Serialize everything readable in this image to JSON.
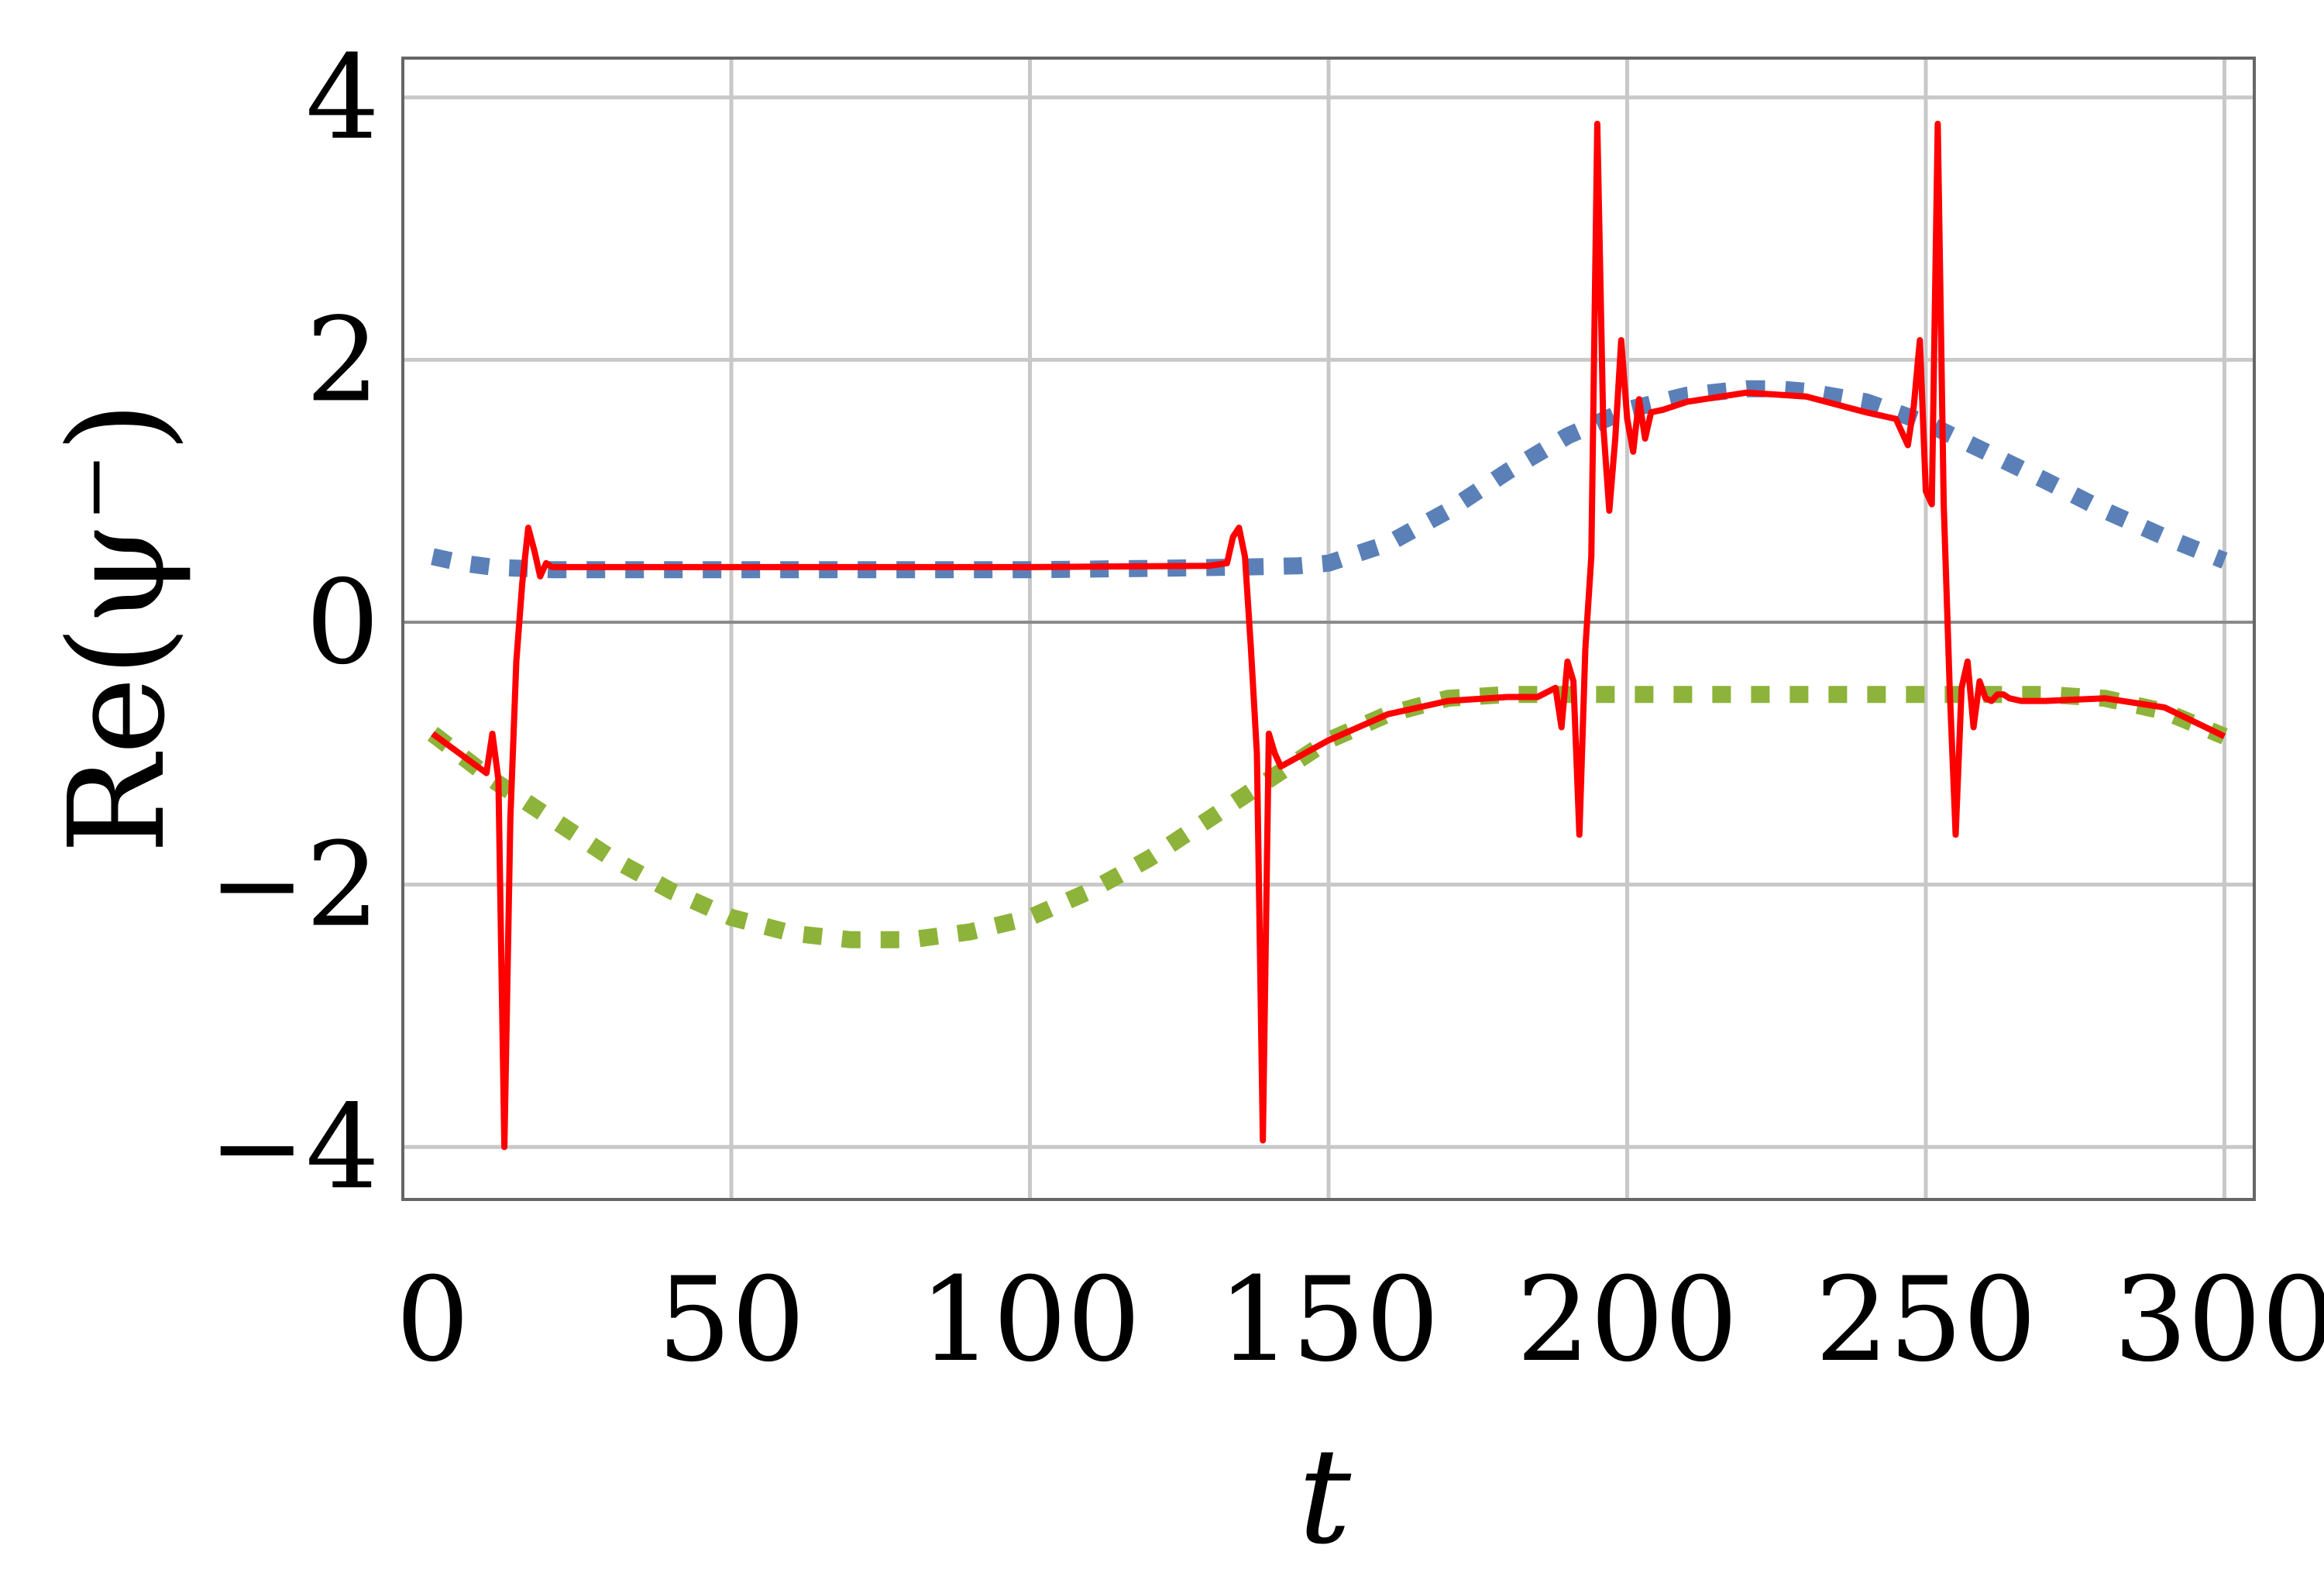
{
  "chart_data": {
    "type": "line",
    "title": "",
    "xlabel": "t",
    "ylabel": "Re(ψ⁻)",
    "xlim": [
      -5,
      305
    ],
    "ylim": [
      -4.4,
      4.3
    ],
    "xticks": [
      0,
      50,
      100,
      150,
      200,
      250,
      300
    ],
    "yticks": [
      -4,
      -2,
      0,
      2,
      4
    ],
    "xtick_labels": [
      "0",
      "50",
      "100",
      "150",
      "200",
      "250",
      "300"
    ],
    "ytick_labels": [
      "−4",
      "−2",
      "0",
      "2",
      "4"
    ],
    "grid": true,
    "legend": "none",
    "series": [
      {
        "style": "dotted",
        "color": "#5b80b8",
        "x": [
          0,
          5,
          10,
          20,
          40,
          60,
          80,
          100,
          120,
          135,
          145,
          150,
          160,
          170,
          180,
          190,
          200,
          210,
          220,
          225,
          230,
          240,
          250,
          260,
          270,
          280,
          290,
          300
        ],
        "y": [
          0.5,
          0.45,
          0.42,
          0.4,
          0.4,
          0.4,
          0.4,
          0.4,
          0.41,
          0.42,
          0.43,
          0.45,
          0.6,
          0.85,
          1.15,
          1.42,
          1.62,
          1.73,
          1.78,
          1.78,
          1.76,
          1.68,
          1.52,
          1.3,
          1.08,
          0.85,
          0.65,
          0.47
        ]
      },
      {
        "style": "dotted",
        "color": "#8db33a",
        "x": [
          0,
          10,
          20,
          30,
          40,
          50,
          60,
          70,
          80,
          90,
          100,
          110,
          120,
          130,
          140,
          150,
          160,
          170,
          180,
          190,
          200,
          250,
          270,
          280,
          290,
          300
        ],
        "y": [
          -0.85,
          -1.2,
          -1.5,
          -1.8,
          -2.05,
          -2.25,
          -2.37,
          -2.42,
          -2.42,
          -2.36,
          -2.25,
          -2.05,
          -1.8,
          -1.5,
          -1.2,
          -0.9,
          -0.7,
          -0.58,
          -0.55,
          -0.55,
          -0.55,
          -0.55,
          -0.55,
          -0.58,
          -0.68,
          -0.87
        ]
      },
      {
        "style": "solid",
        "color": "#ff0000",
        "x": [
          0,
          6,
          9,
          10,
          11,
          12,
          13,
          14,
          15,
          16,
          17,
          18,
          19,
          20,
          30,
          60,
          100,
          130,
          133,
          134,
          135,
          136,
          137,
          138,
          139,
          140,
          141,
          142,
          150,
          160,
          170,
          180,
          185,
          188,
          189,
          190,
          191,
          192,
          193,
          194,
          195,
          196,
          197,
          198,
          199,
          200,
          201,
          202,
          203,
          204,
          206,
          210,
          220,
          230,
          240,
          245,
          247,
          248,
          249,
          250,
          251,
          252,
          253,
          254,
          255,
          256,
          257,
          258,
          259,
          260,
          261,
          262,
          263,
          264,
          266,
          270,
          280,
          290,
          300
        ],
        "y": [
          -0.85,
          -1.05,
          -1.15,
          -0.85,
          -1.2,
          -4.0,
          -1.5,
          -0.3,
          0.3,
          0.72,
          0.55,
          0.35,
          0.45,
          0.42,
          0.42,
          0.42,
          0.42,
          0.43,
          0.45,
          0.65,
          0.72,
          0.5,
          -0.2,
          -1.0,
          -3.95,
          -0.85,
          -1.0,
          -1.1,
          -0.9,
          -0.7,
          -0.6,
          -0.57,
          -0.57,
          -0.5,
          -0.8,
          -0.3,
          -0.45,
          -1.62,
          -0.2,
          0.5,
          3.8,
          1.5,
          0.85,
          1.4,
          2.15,
          1.55,
          1.3,
          1.7,
          1.4,
          1.6,
          1.62,
          1.68,
          1.75,
          1.72,
          1.6,
          1.55,
          1.35,
          1.65,
          2.15,
          1.0,
          0.9,
          3.8,
          0.9,
          -0.5,
          -1.62,
          -0.5,
          -0.3,
          -0.8,
          -0.45,
          -0.58,
          -0.6,
          -0.55,
          -0.55,
          -0.58,
          -0.6,
          -0.6,
          -0.58,
          -0.65,
          -0.87
        ]
      }
    ]
  }
}
